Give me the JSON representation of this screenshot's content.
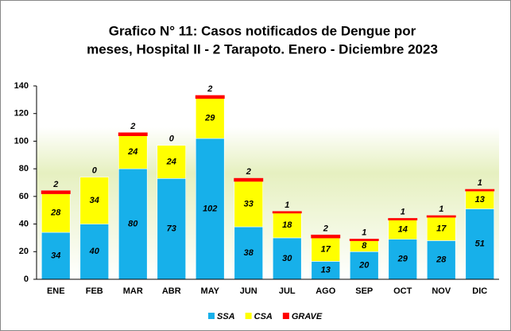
{
  "chart_data": {
    "type": "stacked_bar",
    "title_lines": [
      "Grafico N° 11: Casos notificados de Dengue por",
      "meses, Hospital II - 2 Tarapoto. Enero - Diciembre 2023"
    ],
    "categories": [
      "ENE",
      "FEB",
      "MAR",
      "ABR",
      "MAY",
      "JUN",
      "JUL",
      "AGO",
      "SEP",
      "OCT",
      "NOV",
      "DIC"
    ],
    "series": [
      {
        "name": "SSA",
        "color": "#17b0ea",
        "values": [
          34,
          40,
          80,
          73,
          102,
          38,
          30,
          13,
          20,
          29,
          28,
          51
        ]
      },
      {
        "name": "CSA",
        "color": "#ffff00",
        "values": [
          28,
          34,
          24,
          24,
          29,
          33,
          18,
          17,
          8,
          14,
          17,
          13
        ]
      },
      {
        "name": "GRAVE",
        "color": "#ff0000",
        "values": [
          2,
          0,
          2,
          0,
          2,
          2,
          1,
          2,
          1,
          1,
          1,
          1
        ]
      }
    ],
    "ylim": [
      0,
      140
    ],
    "yticks": [
      0,
      20,
      40,
      60,
      80,
      100,
      120,
      140
    ],
    "legend": "bottom"
  }
}
